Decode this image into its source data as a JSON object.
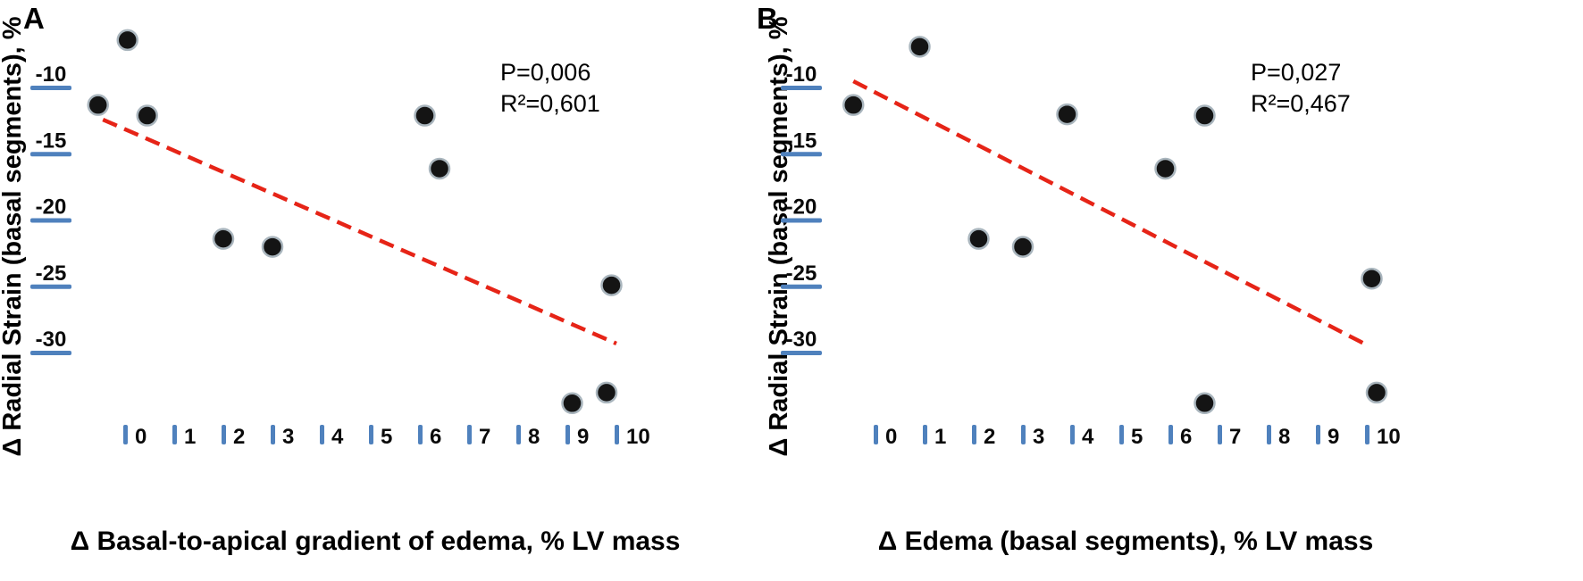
{
  "figure": {
    "panels": [
      {
        "letter": "A",
        "y_axis_label": "Δ Radial Strain (basal segments), %",
        "x_axis_label": "Δ Basal-to-apical gradient of edema, % LV mass",
        "stats": {
          "p": "P=0,006",
          "r2": "R²=0,601"
        }
      },
      {
        "letter": "B",
        "y_axis_label": "Δ Radial Strain (basal segments), %",
        "x_axis_label": "Δ Edema (basal segments), % LV mass",
        "stats": {
          "p": "P=0,027",
          "r2": "R²=0,467"
        }
      }
    ]
  },
  "colors": {
    "axis_tick": "#4f81bd",
    "point_fill": "#141414",
    "point_stroke": "#a9b5bd",
    "trend_line": "#e62417",
    "text": "#000000",
    "background": "#ffffff"
  },
  "chart_data": [
    {
      "type": "scatter",
      "title": "",
      "xlabel": "Δ Basal-to-apical gradient of edema, % LV mass",
      "ylabel": "Δ Radial Strain (basal segments), %",
      "x_ticks": [
        0,
        1,
        2,
        3,
        4,
        5,
        6,
        7,
        8,
        9,
        10
      ],
      "y_ticks": [
        -10,
        -15,
        -20,
        -25,
        -30
      ],
      "xlim": [
        -1,
        10.6
      ],
      "ylim": [
        -36,
        -6
      ],
      "grid": false,
      "legend": "none",
      "points": [
        [
          0.05,
          -7.3
        ],
        [
          -0.55,
          -12.2
        ],
        [
          0.45,
          -13.0
        ],
        [
          6.1,
          -13.0
        ],
        [
          6.4,
          -17.0
        ],
        [
          2.0,
          -22.3
        ],
        [
          3.0,
          -22.9
        ],
        [
          9.9,
          -25.8
        ],
        [
          9.1,
          -34.7
        ],
        [
          9.8,
          -33.9
        ]
      ],
      "trend": {
        "style": "dashed",
        "color": "red",
        "x1": -0.45,
        "y1": -13.3,
        "x2": 10.0,
        "y2": -30.2
      },
      "annotations": [
        "P=0,006",
        "R²=0,601"
      ]
    },
    {
      "type": "scatter",
      "title": "",
      "xlabel": "Δ Edema (basal segments), % LV mass",
      "ylabel": "Δ Radial Strain (basal segments), %",
      "x_ticks": [
        0,
        1,
        2,
        3,
        4,
        5,
        6,
        7,
        8,
        9,
        10
      ],
      "y_ticks": [
        -10,
        -15,
        -20,
        -25,
        -30
      ],
      "xlim": [
        -1,
        10.6
      ],
      "ylim": [
        -36,
        -6
      ],
      "grid": false,
      "legend": "none",
      "points": [
        [
          0.9,
          -7.8
        ],
        [
          -0.45,
          -12.2
        ],
        [
          3.9,
          -12.9
        ],
        [
          6.7,
          -13.0
        ],
        [
          5.9,
          -17.0
        ],
        [
          2.1,
          -22.3
        ],
        [
          3.0,
          -22.9
        ],
        [
          10.1,
          -25.3
        ],
        [
          6.7,
          -34.7
        ],
        [
          10.2,
          -33.9
        ]
      ],
      "trend": {
        "style": "dashed",
        "color": "red",
        "x1": -0.45,
        "y1": -10.4,
        "x2": 10.05,
        "y2": -30.4
      },
      "annotations": [
        "P=0,027",
        "R²=0,467"
      ]
    }
  ]
}
